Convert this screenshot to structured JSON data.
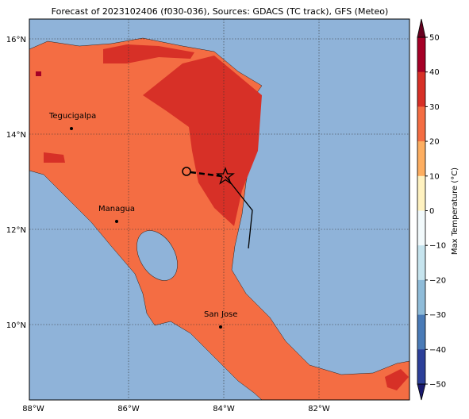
{
  "title": "Forecast of 2023102406 (f030-036), Sources: GDACS (TC track), GFS (Meteo)",
  "map": {
    "lat_labels": [
      "16°N",
      "14°N",
      "12°N",
      "10°N"
    ],
    "lon_labels": [
      "88°W",
      "86°W",
      "84°W",
      "82°W"
    ],
    "cities": [
      "Tegucigalpa",
      "Managua",
      "San Jose"
    ]
  },
  "colorbar": {
    "label": "Max Temperature (°C)",
    "ticks": [
      "50",
      "40",
      "30",
      "20",
      "10",
      "0",
      "−10",
      "−20",
      "−30",
      "−40",
      "−50"
    ]
  }
}
